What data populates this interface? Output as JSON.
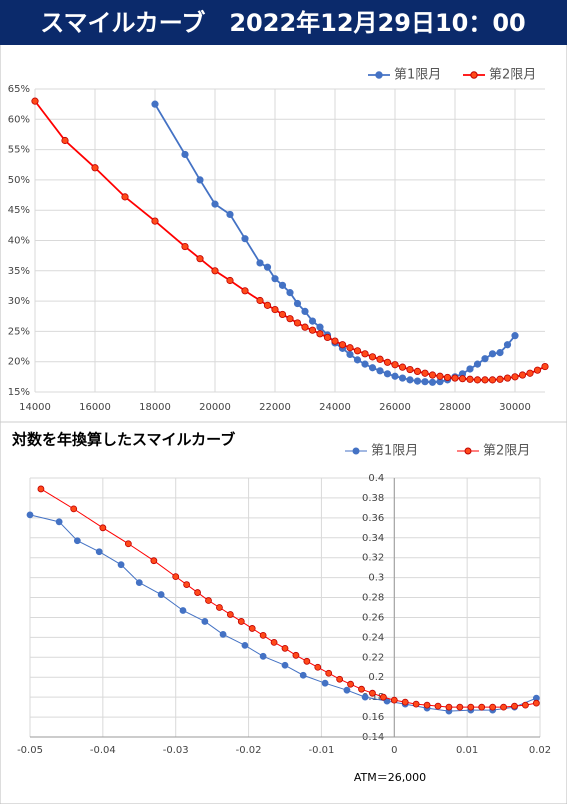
{
  "header": {
    "title": "スマイルカーブ　2022年12月29日10：00"
  },
  "chart_data": [
    {
      "type": "line",
      "legend": "top-right",
      "grid": true,
      "xlim": [
        14000,
        31000
      ],
      "xticks": [
        14000,
        16000,
        18000,
        20000,
        22000,
        24000,
        26000,
        28000,
        30000
      ],
      "ylim": [
        15,
        65
      ],
      "yticks": [
        {
          "value": 15,
          "label": "15%"
        },
        {
          "value": 20,
          "label": "20%"
        },
        {
          "value": 25,
          "label": "25%"
        },
        {
          "value": 30,
          "label": "30%"
        },
        {
          "value": 35,
          "label": "35%"
        },
        {
          "value": 40,
          "label": "40%"
        },
        {
          "value": 45,
          "label": "45%"
        },
        {
          "value": 50,
          "label": "50%"
        },
        {
          "value": 55,
          "label": "55%"
        },
        {
          "value": 60,
          "label": "60%"
        },
        {
          "value": 65,
          "label": "65%"
        }
      ],
      "series": [
        {
          "name": "第1限月",
          "color": "#4472c4",
          "x": [
            18000,
            19000,
            19500,
            20000,
            20500,
            21000,
            21500,
            21750,
            22000,
            22250,
            22500,
            22750,
            23000,
            23250,
            23500,
            23750,
            24000,
            24250,
            24500,
            24750,
            25000,
            25250,
            25500,
            25750,
            26000,
            26250,
            26500,
            26750,
            27000,
            27250,
            27500,
            27750,
            28000,
            28250,
            28500,
            28750,
            29000,
            29250,
            29500,
            29750,
            30000
          ],
          "values": [
            62.5,
            54.2,
            50,
            46,
            44.3,
            40.3,
            36.3,
            35.6,
            33.7,
            32.6,
            31.4,
            29.6,
            28.3,
            26.7,
            25.7,
            24.4,
            23.1,
            22.2,
            21.2,
            20.3,
            19.6,
            19.0,
            18.5,
            18.0,
            17.6,
            17.3,
            17.0,
            16.8,
            16.7,
            16.6,
            16.7,
            17.0,
            17.5,
            18.0,
            18.8,
            19.6,
            20.5,
            21.3,
            21.5,
            22.8,
            24.3
          ]
        },
        {
          "name": "第2限月",
          "color": "#ff0000",
          "x": [
            14000,
            15000,
            16000,
            17000,
            18000,
            19000,
            19500,
            20000,
            20500,
            21000,
            21500,
            21750,
            22000,
            22250,
            22500,
            22750,
            23000,
            23250,
            23500,
            23750,
            24000,
            24250,
            24500,
            24750,
            25000,
            25250,
            25500,
            25750,
            26000,
            26250,
            26500,
            26750,
            27000,
            27250,
            27500,
            27750,
            28000,
            28250,
            28500,
            28750,
            29000,
            29250,
            29500,
            29750,
            30000,
            30250,
            30500,
            30750,
            31000
          ],
          "values": [
            63,
            56.5,
            52,
            47.2,
            43.2,
            39,
            37,
            35,
            33.4,
            31.7,
            30.1,
            29.3,
            28.6,
            27.8,
            27.1,
            26.4,
            25.7,
            25.2,
            24.6,
            24.0,
            23.4,
            22.8,
            22.3,
            21.8,
            21.3,
            20.8,
            20.4,
            19.9,
            19.5,
            19.1,
            18.7,
            18.4,
            18.1,
            17.8,
            17.6,
            17.4,
            17.3,
            17.2,
            17.1,
            17.0,
            17.0,
            17.0,
            17.1,
            17.3,
            17.5,
            17.8,
            18.1,
            18.6,
            19.2
          ]
        }
      ]
    },
    {
      "type": "line",
      "title": "対数を年換算したスマイルカーブ",
      "legend": "top-right",
      "grid": true,
      "annotation": "ATM＝26,000",
      "xlim": [
        -0.05,
        0.02
      ],
      "xticks": [
        -0.05,
        -0.04,
        -0.03,
        -0.02,
        -0.01,
        0,
        0.01,
        0.02
      ],
      "ylim": [
        0.14,
        0.4
      ],
      "yticks": [
        0.14,
        0.16,
        0.18,
        0.2,
        0.22,
        0.24,
        0.26,
        0.28,
        0.3,
        0.32,
        0.34,
        0.36,
        0.38,
        0.4
      ],
      "series": [
        {
          "name": "第1限月",
          "color": "#4472c4",
          "x": [
            -0.05,
            -0.046,
            -0.0435,
            -0.0405,
            -0.0375,
            -0.035,
            -0.032,
            -0.029,
            -0.026,
            -0.0235,
            -0.0205,
            -0.018,
            -0.015,
            -0.0125,
            -0.0095,
            -0.0065,
            -0.004,
            -0.001,
            0.0015,
            0.0045,
            0.0075,
            0.0105,
            0.0135,
            0.0165,
            0.0195
          ],
          "values": [
            0.363,
            0.356,
            0.337,
            0.326,
            0.313,
            0.295,
            0.283,
            0.267,
            0.256,
            0.243,
            0.232,
            0.221,
            0.212,
            0.202,
            0.194,
            0.187,
            0.18,
            0.176,
            0.173,
            0.169,
            0.166,
            0.167,
            0.167,
            0.17,
            0.179
          ]
        },
        {
          "name": "第2限月",
          "color": "#ff0000",
          "x": [
            -0.0485,
            -0.044,
            -0.04,
            -0.0365,
            -0.033,
            -0.03,
            -0.0285,
            -0.027,
            -0.0255,
            -0.024,
            -0.0225,
            -0.021,
            -0.0195,
            -0.018,
            -0.0165,
            -0.015,
            -0.0135,
            -0.012,
            -0.0105,
            -0.009,
            -0.0075,
            -0.006,
            -0.0045,
            -0.003,
            -0.0015,
            0,
            0.0015,
            0.003,
            0.0045,
            0.006,
            0.0075,
            0.009,
            0.0105,
            0.012,
            0.0135,
            0.015,
            0.0165,
            0.018,
            0.0195
          ],
          "values": [
            0.389,
            0.369,
            0.35,
            0.334,
            0.317,
            0.301,
            0.293,
            0.285,
            0.277,
            0.27,
            0.263,
            0.256,
            0.249,
            0.242,
            0.235,
            0.229,
            0.222,
            0.216,
            0.21,
            0.204,
            0.198,
            0.193,
            0.188,
            0.184,
            0.18,
            0.177,
            0.175,
            0.173,
            0.172,
            0.171,
            0.17,
            0.17,
            0.17,
            0.17,
            0.17,
            0.17,
            0.171,
            0.172,
            0.174
          ]
        }
      ]
    }
  ]
}
